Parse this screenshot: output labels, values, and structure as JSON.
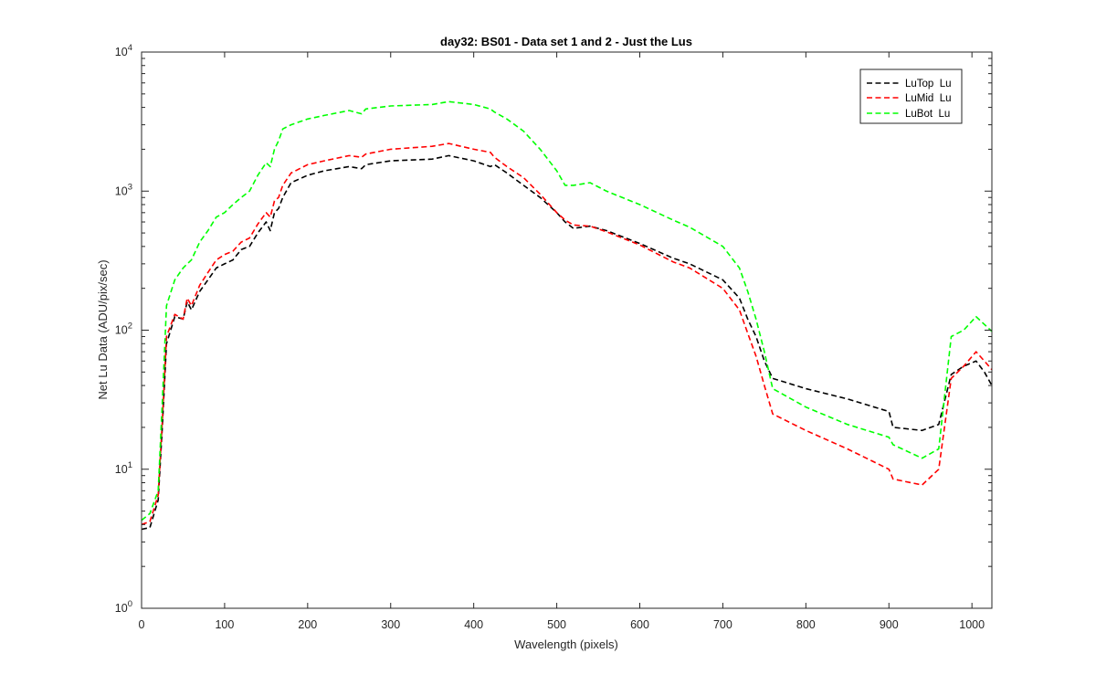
{
  "chart_data": {
    "type": "line",
    "title": "day32: BS01 - Data set 1 and 2 - Just the Lus",
    "xlabel": "Wavelength (pixels)",
    "ylabel": "Net Lu Data (ADU/pix/sec)",
    "xlim": [
      0,
      1024
    ],
    "ylim": [
      1,
      10000
    ],
    "yscale": "log",
    "grid": false,
    "legend_position": "top-right",
    "x_ticks": [
      0,
      100,
      200,
      300,
      400,
      500,
      600,
      700,
      800,
      900,
      1000
    ],
    "x_tick_labels": [
      "0",
      "100",
      "200",
      "300",
      "400",
      "500",
      "600",
      "700",
      "800",
      "900",
      "1000"
    ],
    "y_ticks": [
      {
        "value": 1,
        "base": "10",
        "exp": "0"
      },
      {
        "value": 10,
        "base": "10",
        "exp": "1"
      },
      {
        "value": 100,
        "base": "10",
        "exp": "2"
      },
      {
        "value": 1000,
        "base": "10",
        "exp": "3"
      },
      {
        "value": 10000,
        "base": "10",
        "exp": "4"
      }
    ],
    "series": [
      {
        "name": "LuTop  Lu",
        "color": "#000000",
        "x": [
          0,
          10,
          20,
          25,
          30,
          40,
          50,
          55,
          60,
          70,
          80,
          90,
          100,
          110,
          120,
          130,
          140,
          150,
          155,
          160,
          165,
          170,
          180,
          200,
          220,
          250,
          265,
          270,
          300,
          350,
          370,
          400,
          420,
          425,
          440,
          460,
          480,
          500,
          510,
          520,
          540,
          560,
          600,
          640,
          660,
          700,
          720,
          730,
          740,
          750,
          760,
          800,
          850,
          900,
          905,
          940,
          960,
          975,
          990,
          1005,
          1015,
          1024
        ],
        "y": [
          3.7,
          3.8,
          6,
          20,
          80,
          125,
          120,
          160,
          140,
          190,
          230,
          280,
          300,
          320,
          380,
          400,
          500,
          600,
          520,
          700,
          750,
          900,
          1150,
          1300,
          1400,
          1500,
          1450,
          1550,
          1650,
          1700,
          1800,
          1650,
          1500,
          1550,
          1350,
          1100,
          900,
          700,
          600,
          540,
          560,
          520,
          420,
          330,
          300,
          230,
          170,
          120,
          90,
          60,
          45,
          38,
          32,
          26,
          20,
          19,
          21,
          48,
          55,
          60,
          50,
          40
        ]
      },
      {
        "name": "LuMid  Lu",
        "color": "#ff0000",
        "x": [
          0,
          10,
          20,
          25,
          30,
          40,
          50,
          55,
          60,
          70,
          80,
          90,
          100,
          110,
          120,
          130,
          140,
          150,
          155,
          160,
          165,
          170,
          180,
          200,
          220,
          250,
          265,
          270,
          300,
          350,
          370,
          400,
          420,
          425,
          440,
          460,
          480,
          500,
          510,
          520,
          540,
          560,
          600,
          640,
          660,
          700,
          720,
          730,
          740,
          750,
          760,
          800,
          850,
          900,
          905,
          940,
          960,
          975,
          990,
          1005,
          1015,
          1024
        ],
        "y": [
          4,
          4.2,
          6.5,
          22,
          90,
          130,
          120,
          170,
          150,
          210,
          260,
          320,
          350,
          370,
          430,
          460,
          580,
          700,
          650,
          850,
          900,
          1100,
          1350,
          1550,
          1650,
          1800,
          1750,
          1850,
          2000,
          2100,
          2200,
          2000,
          1900,
          1750,
          1500,
          1250,
          950,
          700,
          620,
          570,
          560,
          510,
          410,
          310,
          280,
          200,
          140,
          95,
          65,
          40,
          25,
          19,
          14,
          10,
          8.5,
          7.7,
          10,
          45,
          55,
          70,
          60,
          52
        ]
      },
      {
        "name": "LuBot  Lu",
        "color": "#00ff00",
        "x": [
          0,
          10,
          20,
          25,
          30,
          40,
          50,
          55,
          60,
          70,
          80,
          90,
          100,
          110,
          120,
          130,
          140,
          150,
          155,
          160,
          165,
          170,
          180,
          200,
          220,
          250,
          265,
          270,
          300,
          350,
          370,
          400,
          420,
          425,
          440,
          460,
          480,
          500,
          510,
          520,
          540,
          560,
          600,
          640,
          660,
          700,
          720,
          730,
          740,
          750,
          760,
          800,
          850,
          900,
          905,
          940,
          960,
          975,
          990,
          1005,
          1015,
          1024
        ],
        "y": [
          4.3,
          4.8,
          7,
          30,
          150,
          230,
          280,
          300,
          320,
          430,
          520,
          650,
          700,
          800,
          900,
          1000,
          1300,
          1600,
          1500,
          2000,
          2300,
          2800,
          3000,
          3300,
          3500,
          3800,
          3600,
          3900,
          4100,
          4200,
          4400,
          4200,
          3900,
          3700,
          3300,
          2700,
          2000,
          1400,
          1100,
          1100,
          1150,
          1000,
          800,
          620,
          550,
          400,
          280,
          190,
          120,
          70,
          38,
          28,
          21,
          17,
          15,
          12,
          14,
          90,
          100,
          125,
          110,
          98
        ]
      }
    ]
  }
}
